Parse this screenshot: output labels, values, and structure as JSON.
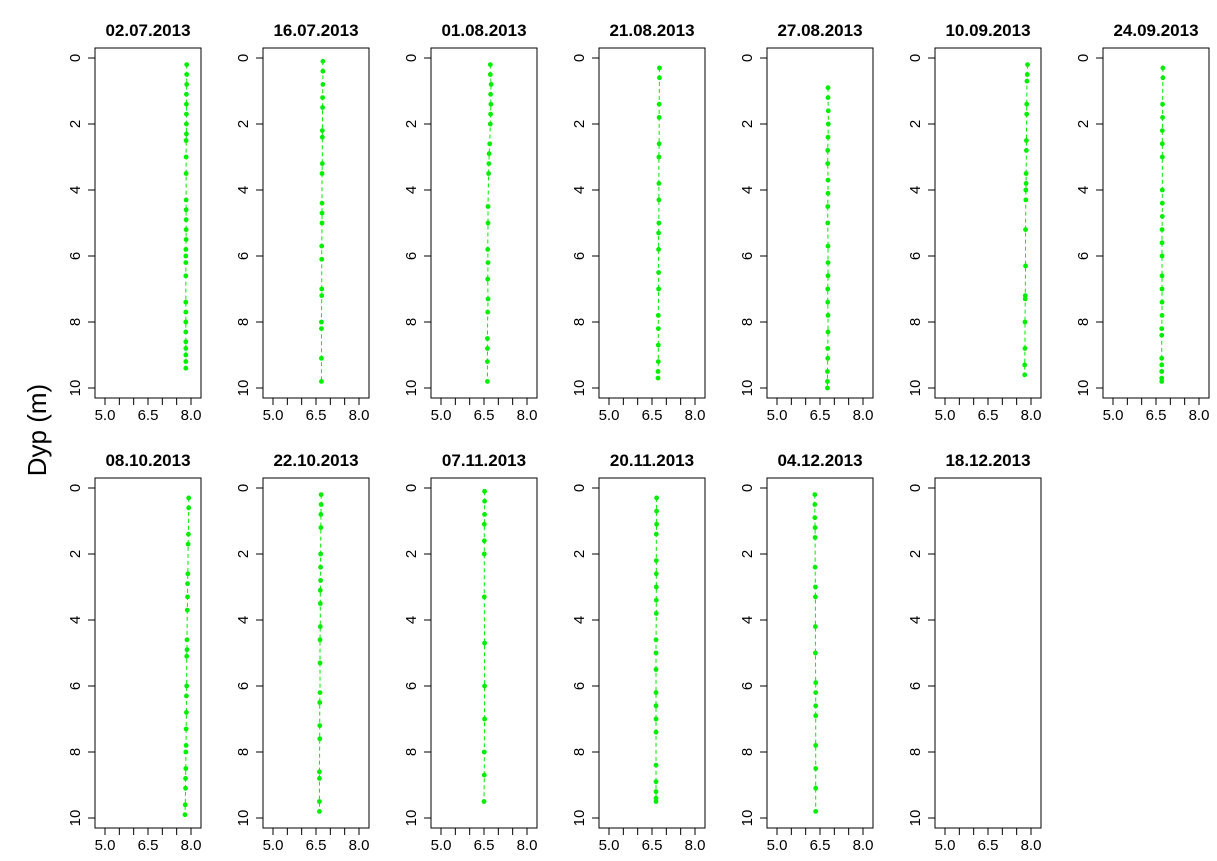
{
  "figure": {
    "ylabel": "Dyp (m)",
    "series_color": "#00ee00"
  },
  "chart_data": [
    {
      "type": "scatter",
      "title": "02.07.2013",
      "xlim": [
        5.0,
        8.0
      ],
      "ylim": [
        10,
        0
      ],
      "y_reversed": true,
      "xticks": [
        "5.0",
        "6.5",
        "8.0"
      ],
      "yticks": [
        "0",
        "2",
        "4",
        "6",
        "8",
        "10"
      ],
      "x": [
        7.85,
        7.85,
        7.85,
        7.84,
        7.84,
        7.84,
        7.84,
        7.84,
        7.83,
        7.83,
        7.83,
        7.83,
        7.83,
        7.83,
        7.83,
        7.83,
        7.82,
        7.82,
        7.82,
        7.82,
        7.82,
        7.82,
        7.82,
        7.82,
        7.82,
        7.82,
        7.82,
        7.82,
        7.82
      ],
      "y": [
        0.2,
        0.5,
        0.8,
        1.1,
        1.4,
        1.7,
        2.0,
        2.3,
        2.5,
        3.0,
        3.5,
        4.3,
        4.6,
        4.9,
        5.2,
        5.5,
        5.8,
        6.0,
        6.2,
        6.6,
        7.4,
        7.7,
        8.0,
        8.3,
        8.6,
        8.8,
        9.0,
        9.2,
        9.4
      ]
    },
    {
      "type": "scatter",
      "title": "16.07.2013",
      "xlim": [
        5.0,
        8.0
      ],
      "ylim": [
        10,
        0
      ],
      "y_reversed": true,
      "xticks": [
        "5.0",
        "6.5",
        "8.0"
      ],
      "yticks": [
        "0",
        "2",
        "4",
        "6",
        "8",
        "10"
      ],
      "x": [
        6.74,
        6.74,
        6.74,
        6.73,
        6.73,
        6.72,
        6.72,
        6.72,
        6.71,
        6.71,
        6.71,
        6.71,
        6.7,
        6.7,
        6.7,
        6.7,
        6.69,
        6.69,
        6.69,
        6.69
      ],
      "y": [
        0.1,
        0.4,
        0.8,
        1.2,
        1.5,
        2.2,
        2.4,
        3.2,
        3.5,
        4.4,
        4.7,
        5.0,
        5.7,
        6.1,
        7.0,
        7.2,
        8.0,
        8.2,
        9.1,
        9.8
      ]
    },
    {
      "type": "scatter",
      "title": "01.08.2013",
      "xlim": [
        5.0,
        8.0
      ],
      "ylim": [
        10,
        0
      ],
      "y_reversed": true,
      "xticks": [
        "5.0",
        "6.5",
        "8.0"
      ],
      "yticks": [
        "0",
        "2",
        "4",
        "6",
        "8",
        "10"
      ],
      "x": [
        6.72,
        6.72,
        6.75,
        6.73,
        6.74,
        6.73,
        6.72,
        6.7,
        6.68,
        6.67,
        6.66,
        6.64,
        6.64,
        6.63,
        6.64,
        6.63,
        6.64,
        6.63,
        6.62,
        6.62,
        6.62,
        6.62
      ],
      "y": [
        0.2,
        0.5,
        0.8,
        1.1,
        1.4,
        1.7,
        2.0,
        2.6,
        2.9,
        3.2,
        3.5,
        4.5,
        5.0,
        5.8,
        6.2,
        6.7,
        7.3,
        7.7,
        8.5,
        8.8,
        9.2,
        9.8
      ]
    },
    {
      "type": "scatter",
      "title": "21.08.2013",
      "xlim": [
        5.0,
        8.0
      ],
      "ylim": [
        10,
        0
      ],
      "y_reversed": true,
      "xticks": [
        "5.0",
        "6.5",
        "8.0"
      ],
      "yticks": [
        "0",
        "2",
        "4",
        "6",
        "8",
        "10"
      ],
      "x": [
        6.76,
        6.76,
        6.75,
        6.75,
        6.75,
        6.74,
        6.74,
        6.74,
        6.74,
        6.73,
        6.73,
        6.73,
        6.73,
        6.72,
        6.72,
        6.72,
        6.72,
        6.71,
        6.71
      ],
      "y": [
        0.3,
        0.6,
        1.4,
        1.8,
        2.6,
        3.0,
        3.8,
        4.3,
        5.0,
        5.3,
        5.8,
        6.5,
        7.0,
        7.8,
        8.2,
        8.7,
        9.2,
        9.5,
        9.7
      ]
    },
    {
      "type": "scatter",
      "title": "27.08.2013",
      "xlim": [
        5.0,
        8.0
      ],
      "ylim": [
        10,
        0
      ],
      "y_reversed": true,
      "xticks": [
        "5.0",
        "6.5",
        "8.0"
      ],
      "yticks": [
        "0",
        "2",
        "4",
        "6",
        "8",
        "10"
      ],
      "x": [
        6.78,
        6.78,
        6.79,
        6.79,
        6.78,
        6.77,
        6.77,
        6.78,
        6.78,
        6.77,
        6.77,
        6.78,
        6.78,
        6.78,
        6.77,
        6.77,
        6.78,
        6.78,
        6.77,
        6.77,
        6.76,
        6.76,
        6.76
      ],
      "y": [
        0.9,
        1.2,
        1.6,
        2.0,
        2.4,
        2.8,
        3.2,
        3.7,
        4.1,
        4.5,
        5.0,
        5.7,
        6.2,
        6.6,
        7.0,
        7.4,
        7.8,
        8.3,
        8.8,
        9.1,
        9.5,
        9.8,
        10.0
      ]
    },
    {
      "type": "scatter",
      "title": "10.09.2013",
      "xlim": [
        5.0,
        8.0
      ],
      "ylim": [
        10,
        0
      ],
      "y_reversed": true,
      "xticks": [
        "5.0",
        "6.5",
        "8.0"
      ],
      "yticks": [
        "0",
        "2",
        "4",
        "6",
        "8",
        "10"
      ],
      "x": [
        7.88,
        7.87,
        7.86,
        7.85,
        7.85,
        7.84,
        7.84,
        7.83,
        7.83,
        7.82,
        7.82,
        7.81,
        7.81,
        7.8,
        7.8,
        7.79,
        7.79,
        7.78,
        7.78
      ],
      "y": [
        0.2,
        0.5,
        0.7,
        1.4,
        1.7,
        2.5,
        2.8,
        3.5,
        3.8,
        4.0,
        4.3,
        5.2,
        6.3,
        7.2,
        7.3,
        8.0,
        8.8,
        9.3,
        9.6
      ]
    },
    {
      "type": "scatter",
      "title": "24.09.2013",
      "xlim": [
        5.0,
        8.0
      ],
      "ylim": [
        10,
        0
      ],
      "y_reversed": true,
      "xticks": [
        "5.0",
        "6.5",
        "8.0"
      ],
      "yticks": [
        "0",
        "2",
        "4",
        "6",
        "8",
        "10"
      ],
      "x": [
        6.74,
        6.74,
        6.73,
        6.73,
        6.72,
        6.72,
        6.72,
        6.72,
        6.72,
        6.72,
        6.71,
        6.71,
        6.71,
        6.71,
        6.71,
        6.71,
        6.71,
        6.7,
        6.7,
        6.7,
        6.7,
        6.7,
        6.7,
        6.7
      ],
      "y": [
        0.3,
        0.6,
        1.4,
        1.8,
        2.2,
        2.6,
        3.0,
        4.0,
        4.4,
        4.8,
        5.2,
        5.6,
        6.0,
        6.6,
        7.0,
        7.4,
        7.8,
        8.2,
        9.1,
        9.3,
        9.5,
        9.7,
        9.8,
        8.4
      ]
    },
    {
      "type": "scatter",
      "title": "08.10.2013",
      "xlim": [
        5.0,
        8.0
      ],
      "ylim": [
        10,
        0
      ],
      "y_reversed": true,
      "xticks": [
        "5.0",
        "6.5",
        "8.0"
      ],
      "yticks": [
        "0",
        "2",
        "4",
        "6",
        "8",
        "10"
      ],
      "x": [
        7.92,
        7.92,
        7.91,
        7.9,
        7.89,
        7.88,
        7.88,
        7.87,
        7.86,
        7.86,
        7.85,
        7.85,
        7.84,
        7.84,
        7.83,
        7.83,
        7.82,
        7.82,
        7.81,
        7.81,
        7.8,
        7.79
      ],
      "y": [
        0.3,
        0.6,
        1.4,
        1.7,
        2.6,
        2.9,
        3.3,
        3.7,
        4.6,
        4.9,
        5.1,
        6.0,
        6.3,
        6.8,
        7.3,
        7.8,
        8.0,
        8.5,
        8.8,
        9.1,
        9.6,
        9.9
      ]
    },
    {
      "type": "scatter",
      "title": "22.10.2013",
      "xlim": [
        5.0,
        8.0
      ],
      "ylim": [
        10,
        0
      ],
      "y_reversed": true,
      "xticks": [
        "5.0",
        "6.5",
        "8.0"
      ],
      "yticks": [
        "0",
        "2",
        "4",
        "6",
        "8",
        "10"
      ],
      "x": [
        6.68,
        6.68,
        6.67,
        6.67,
        6.66,
        6.66,
        6.66,
        6.65,
        6.65,
        6.65,
        6.64,
        6.64,
        6.64,
        6.63,
        6.63,
        6.63,
        6.62,
        6.62,
        6.62,
        6.62
      ],
      "y": [
        0.2,
        0.5,
        0.8,
        1.2,
        2.0,
        2.4,
        2.8,
        3.1,
        3.5,
        4.2,
        4.6,
        5.3,
        6.2,
        6.5,
        7.2,
        7.6,
        8.6,
        8.8,
        9.5,
        9.8
      ]
    },
    {
      "type": "scatter",
      "title": "07.11.2013",
      "xlim": [
        5.0,
        8.0
      ],
      "ylim": [
        10,
        0
      ],
      "y_reversed": true,
      "xticks": [
        "5.0",
        "6.5",
        "8.0"
      ],
      "yticks": [
        "0",
        "2",
        "4",
        "6",
        "8",
        "10"
      ],
      "x": [
        6.52,
        6.52,
        6.52,
        6.51,
        6.51,
        6.51,
        6.51,
        6.52,
        6.52,
        6.52,
        6.51,
        6.51,
        6.5
      ],
      "y": [
        0.1,
        0.4,
        0.8,
        1.1,
        1.6,
        2.0,
        3.3,
        4.7,
        6.0,
        7.0,
        8.0,
        8.7,
        9.5
      ]
    },
    {
      "type": "scatter",
      "title": "20.11.2013",
      "xlim": [
        5.0,
        8.0
      ],
      "ylim": [
        10,
        0
      ],
      "y_reversed": true,
      "xticks": [
        "5.0",
        "6.5",
        "8.0"
      ],
      "yticks": [
        "0",
        "2",
        "4",
        "6",
        "8",
        "10"
      ],
      "x": [
        6.66,
        6.66,
        6.66,
        6.65,
        6.65,
        6.65,
        6.65,
        6.65,
        6.65,
        6.64,
        6.64,
        6.64,
        6.64,
        6.64,
        6.64,
        6.64,
        6.64,
        6.64,
        6.64,
        6.64,
        6.64
      ],
      "y": [
        0.3,
        0.7,
        1.1,
        1.4,
        2.2,
        2.6,
        3.0,
        3.4,
        3.8,
        4.6,
        5.0,
        5.5,
        6.2,
        6.6,
        7.0,
        7.4,
        8.4,
        8.9,
        9.2,
        9.4,
        9.5
      ]
    },
    {
      "type": "scatter",
      "title": "04.12.2013",
      "xlim": [
        5.0,
        8.0
      ],
      "ylim": [
        10,
        0
      ],
      "y_reversed": true,
      "xticks": [
        "5.0",
        "6.5",
        "8.0"
      ],
      "yticks": [
        "0",
        "2",
        "4",
        "6",
        "8",
        "10"
      ],
      "x": [
        6.32,
        6.32,
        6.32,
        6.33,
        6.33,
        6.33,
        6.34,
        6.34,
        6.34,
        6.34,
        6.35,
        6.35,
        6.35,
        6.35,
        6.35,
        6.35,
        6.35,
        6.35
      ],
      "y": [
        0.2,
        0.5,
        0.9,
        1.2,
        1.5,
        2.4,
        3.0,
        3.3,
        4.2,
        5.0,
        5.9,
        6.2,
        6.6,
        6.9,
        7.8,
        8.5,
        9.1,
        9.8
      ]
    },
    {
      "type": "scatter",
      "title": "18.12.2013",
      "xlim": [
        5.0,
        8.0
      ],
      "ylim": [
        10,
        0
      ],
      "y_reversed": true,
      "xticks": [
        "5.0",
        "6.5",
        "8.0"
      ],
      "yticks": [
        "0",
        "2",
        "4",
        "6",
        "8",
        "10"
      ],
      "x": [],
      "y": []
    }
  ]
}
